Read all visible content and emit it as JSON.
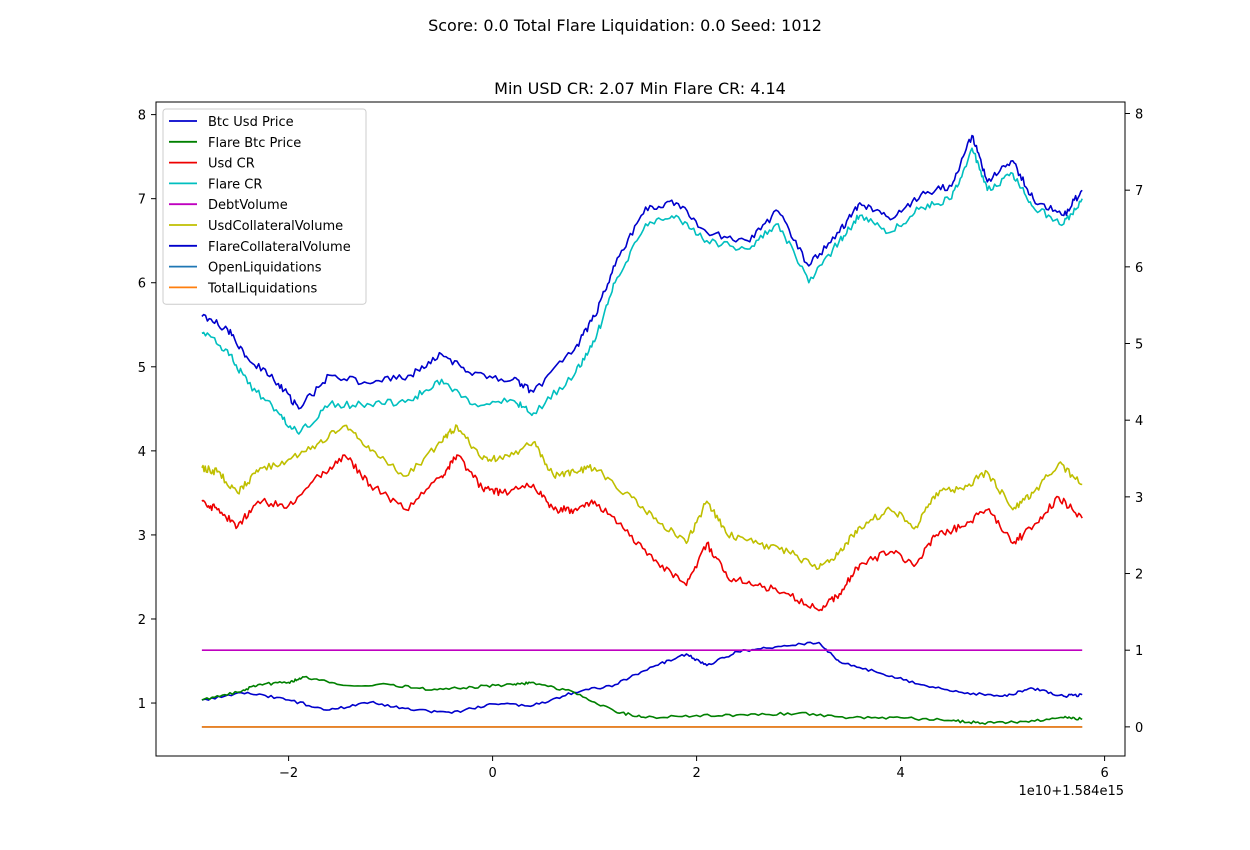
{
  "figure": {
    "suptitle": "Score: 0.0 Total Flare Liquidation: 0.0 Seed: 1012",
    "axes_title": "Min USD CR: 2.07 Min Flare CR: 4.14",
    "x_offset_label": "1e10+1.584e15"
  },
  "chart_data": {
    "type": "line",
    "title": "Min USD CR: 2.07 Min Flare CR: 4.14",
    "x_axis": {
      "ticks": [
        -2,
        0,
        2,
        4,
        6
      ],
      "tick_labels": [
        "−2",
        "0",
        "2",
        "4",
        "6"
      ],
      "range": [
        -3.3,
        6.2
      ],
      "offset_text": "1e10+1.584e15"
    },
    "y_left": {
      "ticks": [
        1,
        2,
        3,
        4,
        5,
        6,
        7,
        8
      ],
      "tick_labels": [
        "1",
        "2",
        "3",
        "4",
        "5",
        "6",
        "7",
        "8"
      ],
      "range": [
        0.37,
        8.15
      ]
    },
    "y_right": {
      "ticks": [
        0,
        1,
        2,
        3,
        4,
        5,
        6,
        7,
        8
      ],
      "tick_labels": [
        "0",
        "1",
        "2",
        "3",
        "4",
        "5",
        "6",
        "7",
        "8"
      ],
      "range": [
        -0.38,
        8.15
      ]
    },
    "legend_placement": "upper-left",
    "grid": false,
    "series": [
      {
        "name": "Btc Usd Price",
        "color": "#0000cc",
        "axis": "right",
        "points": [
          [
            -2.85,
            0.35
          ],
          [
            -2.4,
            0.45
          ],
          [
            -2.0,
            0.35
          ],
          [
            -1.6,
            0.22
          ],
          [
            -1.2,
            0.32
          ],
          [
            -0.8,
            0.22
          ],
          [
            -0.4,
            0.18
          ],
          [
            0.0,
            0.3
          ],
          [
            0.4,
            0.28
          ],
          [
            0.8,
            0.45
          ],
          [
            1.2,
            0.55
          ],
          [
            1.6,
            0.8
          ],
          [
            1.9,
            0.95
          ],
          [
            2.1,
            0.8
          ],
          [
            2.4,
            0.98
          ],
          [
            2.8,
            1.05
          ],
          [
            3.2,
            1.1
          ],
          [
            3.4,
            0.85
          ],
          [
            3.8,
            0.7
          ],
          [
            4.2,
            0.55
          ],
          [
            4.6,
            0.45
          ],
          [
            5.0,
            0.4
          ],
          [
            5.3,
            0.5
          ],
          [
            5.6,
            0.4
          ],
          [
            5.78,
            0.42
          ]
        ]
      },
      {
        "name": "Flare Btc Price",
        "color": "#008000",
        "axis": "right",
        "points": [
          [
            -2.85,
            0.35
          ],
          [
            -2.5,
            0.45
          ],
          [
            -2.3,
            0.55
          ],
          [
            -2.0,
            0.58
          ],
          [
            -1.85,
            0.65
          ],
          [
            -1.5,
            0.55
          ],
          [
            -1.0,
            0.55
          ],
          [
            -0.6,
            0.48
          ],
          [
            -0.2,
            0.52
          ],
          [
            0.2,
            0.55
          ],
          [
            0.4,
            0.58
          ],
          [
            0.8,
            0.45
          ],
          [
            1.2,
            0.2
          ],
          [
            1.5,
            0.12
          ],
          [
            2.0,
            0.15
          ],
          [
            2.5,
            0.15
          ],
          [
            3.0,
            0.18
          ],
          [
            3.5,
            0.12
          ],
          [
            4.0,
            0.12
          ],
          [
            4.5,
            0.08
          ],
          [
            4.8,
            0.05
          ],
          [
            5.2,
            0.07
          ],
          [
            5.6,
            0.12
          ],
          [
            5.78,
            0.1
          ]
        ]
      },
      {
        "name": "Usd CR",
        "color": "#ee0000",
        "axis": "left",
        "points": [
          [
            -2.85,
            3.4
          ],
          [
            -2.7,
            3.3
          ],
          [
            -2.5,
            3.1
          ],
          [
            -2.3,
            3.4
          ],
          [
            -2.0,
            3.35
          ],
          [
            -1.7,
            3.7
          ],
          [
            -1.45,
            3.95
          ],
          [
            -1.2,
            3.6
          ],
          [
            -0.85,
            3.3
          ],
          [
            -0.5,
            3.7
          ],
          [
            -0.35,
            3.95
          ],
          [
            -0.1,
            3.55
          ],
          [
            0.1,
            3.5
          ],
          [
            0.4,
            3.6
          ],
          [
            0.6,
            3.3
          ],
          [
            0.8,
            3.3
          ],
          [
            1.0,
            3.4
          ],
          [
            1.3,
            3.05
          ],
          [
            1.6,
            2.7
          ],
          [
            1.9,
            2.4
          ],
          [
            2.1,
            2.9
          ],
          [
            2.3,
            2.5
          ],
          [
            2.6,
            2.4
          ],
          [
            2.9,
            2.3
          ],
          [
            3.2,
            2.1
          ],
          [
            3.4,
            2.3
          ],
          [
            3.6,
            2.65
          ],
          [
            3.9,
            2.8
          ],
          [
            4.15,
            2.65
          ],
          [
            4.35,
            3.0
          ],
          [
            4.6,
            3.1
          ],
          [
            4.85,
            3.3
          ],
          [
            5.1,
            2.9
          ],
          [
            5.3,
            3.1
          ],
          [
            5.55,
            3.45
          ],
          [
            5.78,
            3.2
          ]
        ]
      },
      {
        "name": "Flare CR",
        "color": "#00bfbf",
        "axis": "left",
        "points": [
          [
            -2.85,
            5.4
          ],
          [
            -2.6,
            5.2
          ],
          [
            -2.4,
            4.8
          ],
          [
            -2.1,
            4.45
          ],
          [
            -1.9,
            4.2
          ],
          [
            -1.6,
            4.55
          ],
          [
            -1.2,
            4.55
          ],
          [
            -0.8,
            4.6
          ],
          [
            -0.5,
            4.85
          ],
          [
            -0.2,
            4.55
          ],
          [
            0.2,
            4.6
          ],
          [
            0.4,
            4.45
          ],
          [
            0.8,
            4.9
          ],
          [
            1.0,
            5.3
          ],
          [
            1.2,
            6.0
          ],
          [
            1.5,
            6.7
          ],
          [
            1.8,
            6.8
          ],
          [
            2.1,
            6.5
          ],
          [
            2.5,
            6.4
          ],
          [
            2.8,
            6.7
          ],
          [
            3.1,
            6.0
          ],
          [
            3.4,
            6.5
          ],
          [
            3.6,
            6.8
          ],
          [
            3.9,
            6.6
          ],
          [
            4.2,
            6.9
          ],
          [
            4.5,
            7.0
          ],
          [
            4.7,
            7.6
          ],
          [
            4.85,
            7.1
          ],
          [
            5.1,
            7.3
          ],
          [
            5.3,
            6.9
          ],
          [
            5.6,
            6.7
          ],
          [
            5.78,
            7.0
          ]
        ]
      },
      {
        "name": "DebtVolume",
        "color": "#bf00bf",
        "axis": "right",
        "points": [
          [
            -2.85,
            1.0
          ],
          [
            5.78,
            1.0
          ]
        ]
      },
      {
        "name": "UsdCollateralVolume",
        "color": "#bfbf00",
        "axis": "left",
        "points": [
          [
            -2.85,
            3.8
          ],
          [
            -2.7,
            3.75
          ],
          [
            -2.5,
            3.5
          ],
          [
            -2.3,
            3.75
          ],
          [
            -2.0,
            3.9
          ],
          [
            -1.7,
            4.1
          ],
          [
            -1.45,
            4.3
          ],
          [
            -1.2,
            4.0
          ],
          [
            -0.85,
            3.7
          ],
          [
            -0.5,
            4.1
          ],
          [
            -0.35,
            4.3
          ],
          [
            -0.1,
            3.9
          ],
          [
            0.1,
            3.9
          ],
          [
            0.4,
            4.1
          ],
          [
            0.6,
            3.7
          ],
          [
            0.8,
            3.75
          ],
          [
            1.0,
            3.8
          ],
          [
            1.3,
            3.5
          ],
          [
            1.6,
            3.2
          ],
          [
            1.9,
            2.9
          ],
          [
            2.1,
            3.4
          ],
          [
            2.3,
            3.0
          ],
          [
            2.6,
            2.9
          ],
          [
            2.9,
            2.8
          ],
          [
            3.2,
            2.6
          ],
          [
            3.4,
            2.8
          ],
          [
            3.6,
            3.1
          ],
          [
            3.9,
            3.3
          ],
          [
            4.15,
            3.1
          ],
          [
            4.35,
            3.5
          ],
          [
            4.6,
            3.55
          ],
          [
            4.85,
            3.75
          ],
          [
            5.1,
            3.3
          ],
          [
            5.3,
            3.5
          ],
          [
            5.55,
            3.85
          ],
          [
            5.78,
            3.6
          ]
        ]
      },
      {
        "name": "FlareCollateralVolume",
        "color": "#0000cc",
        "axis": "left",
        "points": [
          [
            -2.85,
            5.6
          ],
          [
            -2.6,
            5.45
          ],
          [
            -2.4,
            5.1
          ],
          [
            -2.1,
            4.8
          ],
          [
            -1.9,
            4.5
          ],
          [
            -1.6,
            4.9
          ],
          [
            -1.2,
            4.8
          ],
          [
            -0.8,
            4.9
          ],
          [
            -0.5,
            5.15
          ],
          [
            -0.2,
            4.9
          ],
          [
            0.2,
            4.85
          ],
          [
            0.4,
            4.7
          ],
          [
            0.8,
            5.2
          ],
          [
            1.0,
            5.6
          ],
          [
            1.2,
            6.2
          ],
          [
            1.5,
            6.9
          ],
          [
            1.8,
            6.95
          ],
          [
            2.1,
            6.6
          ],
          [
            2.5,
            6.5
          ],
          [
            2.8,
            6.85
          ],
          [
            3.1,
            6.2
          ],
          [
            3.4,
            6.6
          ],
          [
            3.6,
            6.95
          ],
          [
            3.9,
            6.75
          ],
          [
            4.2,
            7.05
          ],
          [
            4.5,
            7.15
          ],
          [
            4.7,
            7.75
          ],
          [
            4.85,
            7.2
          ],
          [
            5.1,
            7.45
          ],
          [
            5.3,
            7.0
          ],
          [
            5.6,
            6.8
          ],
          [
            5.78,
            7.1
          ]
        ]
      },
      {
        "name": "OpenLiquidations",
        "color": "#1f77b4",
        "axis": "right",
        "points": [
          [
            -2.85,
            0.0
          ],
          [
            5.78,
            0.0
          ]
        ]
      },
      {
        "name": "TotalLiquidations",
        "color": "#ff7f0e",
        "axis": "right",
        "points": [
          [
            -2.85,
            0.0
          ],
          [
            5.78,
            0.0
          ]
        ]
      }
    ]
  }
}
